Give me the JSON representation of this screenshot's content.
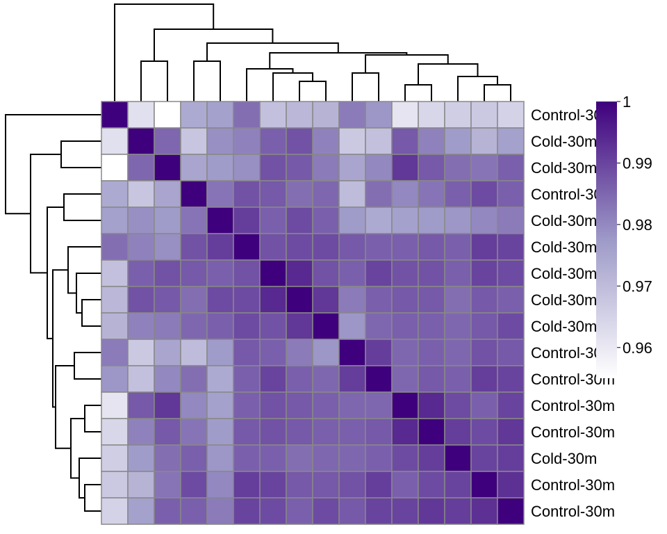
{
  "chart_data": {
    "type": "heatmap",
    "title": "",
    "row_labels": [
      "Control-30m",
      "Cold-30m",
      "Cold-30m",
      "Control-30m",
      "Cold-30m",
      "Cold-30m",
      "Cold-30m",
      "Cold-30m",
      "Cold-30m",
      "Control-30m",
      "Control-30m",
      "Control-30m",
      "Control-30m",
      "Cold-30m",
      "Control-30m",
      "Control-30m"
    ],
    "column_labels_shown": false,
    "dendrograms": {
      "rows": "left",
      "columns": "top"
    },
    "colorbar": {
      "min": 0.955,
      "max": 1.0,
      "ticks": [
        1,
        0.99,
        0.98,
        0.97,
        0.96
      ],
      "tick_labels": [
        "1",
        "0.99",
        "0.98",
        "0.97",
        "0.96"
      ],
      "position": "right"
    },
    "colors": {
      "low": "#ffffff",
      "mid": "#9e9ac8",
      "high": "#3f007d",
      "cell_border": "#888888",
      "tree": "#000000"
    },
    "values": [
      [
        1.0,
        0.962,
        0.955,
        0.974,
        0.976,
        0.984,
        0.969,
        0.971,
        0.972,
        0.982,
        0.978,
        0.961,
        0.964,
        0.966,
        0.967,
        0.965
      ],
      [
        0.962,
        1.0,
        0.985,
        0.968,
        0.979,
        0.981,
        0.986,
        0.988,
        0.981,
        0.967,
        0.969,
        0.987,
        0.981,
        0.977,
        0.972,
        0.976
      ],
      [
        0.955,
        0.985,
        1.0,
        0.975,
        0.977,
        0.979,
        0.988,
        0.987,
        0.982,
        0.975,
        0.98,
        0.992,
        0.987,
        0.984,
        0.983,
        0.986
      ],
      [
        0.974,
        0.968,
        0.975,
        1.0,
        0.983,
        0.988,
        0.987,
        0.984,
        0.985,
        0.97,
        0.984,
        0.98,
        0.983,
        0.986,
        0.989,
        0.986
      ],
      [
        0.976,
        0.979,
        0.977,
        0.983,
        1.0,
        0.991,
        0.986,
        0.989,
        0.986,
        0.977,
        0.974,
        0.976,
        0.977,
        0.978,
        0.98,
        0.982
      ],
      [
        0.984,
        0.981,
        0.979,
        0.988,
        0.991,
        1.0,
        0.988,
        0.989,
        0.989,
        0.987,
        0.986,
        0.986,
        0.987,
        0.986,
        0.991,
        0.99
      ],
      [
        0.969,
        0.986,
        0.988,
        0.987,
        0.986,
        0.988,
        1.0,
        0.994,
        0.988,
        0.986,
        0.99,
        0.988,
        0.988,
        0.986,
        0.99,
        0.989
      ],
      [
        0.971,
        0.988,
        0.987,
        0.984,
        0.989,
        0.989,
        0.994,
        1.0,
        0.992,
        0.982,
        0.986,
        0.987,
        0.987,
        0.984,
        0.987,
        0.986
      ],
      [
        0.972,
        0.981,
        0.982,
        0.985,
        0.986,
        0.989,
        0.988,
        0.992,
        1.0,
        0.978,
        0.985,
        0.986,
        0.986,
        0.985,
        0.987,
        0.989
      ],
      [
        0.982,
        0.967,
        0.975,
        0.97,
        0.977,
        0.987,
        0.986,
        0.982,
        0.978,
        1.0,
        0.991,
        0.985,
        0.986,
        0.985,
        0.988,
        0.987
      ],
      [
        0.978,
        0.969,
        0.98,
        0.984,
        0.974,
        0.986,
        0.99,
        0.986,
        0.985,
        0.991,
        1.0,
        0.985,
        0.987,
        0.986,
        0.991,
        0.99
      ],
      [
        0.961,
        0.987,
        0.992,
        0.98,
        0.976,
        0.986,
        0.988,
        0.987,
        0.986,
        0.985,
        0.985,
        1.0,
        0.994,
        0.989,
        0.986,
        0.99
      ],
      [
        0.964,
        0.981,
        0.987,
        0.983,
        0.977,
        0.987,
        0.988,
        0.987,
        0.986,
        0.986,
        0.987,
        0.994,
        1.0,
        0.991,
        0.989,
        0.992
      ],
      [
        0.966,
        0.977,
        0.984,
        0.986,
        0.978,
        0.986,
        0.986,
        0.984,
        0.985,
        0.985,
        0.986,
        0.989,
        0.991,
        1.0,
        0.99,
        0.991
      ],
      [
        0.967,
        0.972,
        0.983,
        0.989,
        0.98,
        0.991,
        0.99,
        0.987,
        0.987,
        0.988,
        0.991,
        0.986,
        0.989,
        0.99,
        1.0,
        0.993
      ],
      [
        0.965,
        0.976,
        0.986,
        0.986,
        0.982,
        0.99,
        0.989,
        0.986,
        0.989,
        0.987,
        0.99,
        0.99,
        0.992,
        0.991,
        0.993,
        1.0
      ]
    ]
  }
}
